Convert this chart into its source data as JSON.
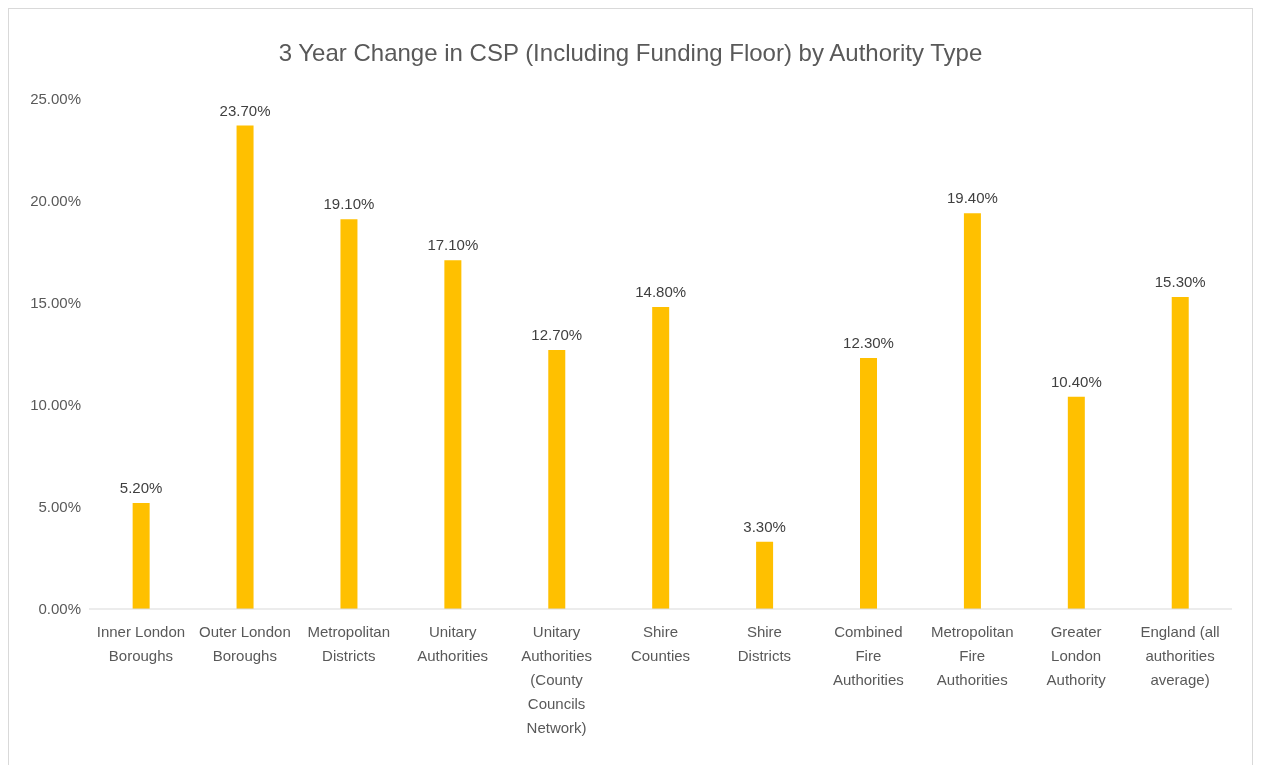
{
  "chart_data": {
    "type": "bar",
    "title": "3 Year Change in CSP (Including Funding Floor) by Authority Type",
    "categories": [
      "Inner London Boroughs",
      "Outer London Boroughs",
      "Metropolitan Districts",
      "Unitary Authorities",
      "Unitary Authorities (County Councils Network)",
      "Shire Counties",
      "Shire Districts",
      "Combined Fire Authorities",
      "Metropolitan Fire Authorities",
      "Greater London Authority",
      "England (all authorities average)"
    ],
    "values": [
      5.2,
      23.7,
      19.1,
      17.1,
      12.7,
      14.8,
      3.3,
      12.3,
      19.4,
      10.4,
      15.3
    ],
    "value_labels": [
      "5.20%",
      "23.70%",
      "19.10%",
      "17.10%",
      "12.70%",
      "14.80%",
      "3.30%",
      "12.30%",
      "19.40%",
      "10.40%",
      "15.30%"
    ],
    "color": "#ffc000",
    "ylim": [
      0,
      25
    ],
    "yticks": [
      {
        "value": 0,
        "label": "0.00%"
      },
      {
        "value": 5,
        "label": "5.00%"
      },
      {
        "value": 10,
        "label": "10.00%"
      },
      {
        "value": 15,
        "label": "15.00%"
      },
      {
        "value": 20,
        "label": "20.00%"
      },
      {
        "value": 25,
        "label": "25.00%"
      }
    ],
    "grid": false,
    "legend": false
  }
}
